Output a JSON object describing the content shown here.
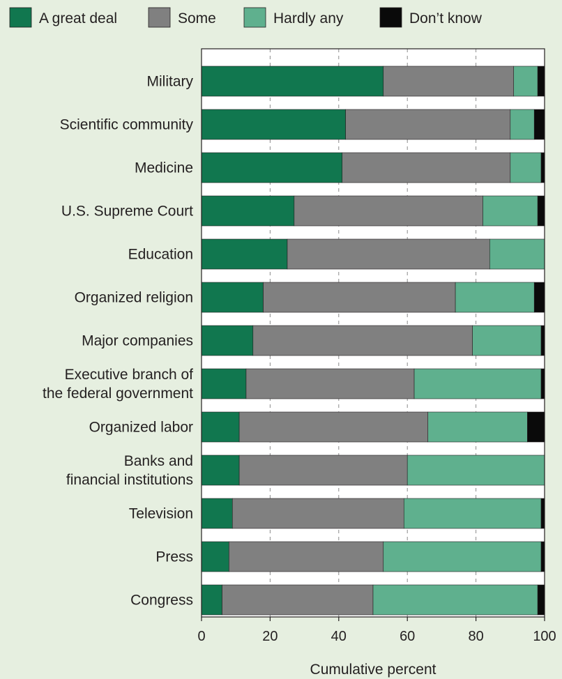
{
  "chart_data": {
    "type": "bar",
    "stacked": true,
    "orientation": "horizontal",
    "categories": [
      "Military",
      "Scientific community",
      "Medicine",
      "U.S. Supreme Court",
      "Education",
      "Organized religion",
      "Major companies",
      "Executive branch of\nthe federal government",
      "Organized labor",
      "Banks and\nfinancial institutions",
      "Television",
      "Press",
      "Congress"
    ],
    "series": [
      {
        "name": "A great deal",
        "color": "#11774f",
        "values": [
          53,
          42,
          41,
          27,
          25,
          18,
          15,
          13,
          11,
          11,
          9,
          8,
          6
        ]
      },
      {
        "name": "Some",
        "color": "#808080",
        "values": [
          38,
          48,
          49,
          55,
          59,
          56,
          64,
          49,
          55,
          49,
          50,
          45,
          44
        ]
      },
      {
        "name": "Hardly any",
        "color": "#5fb08e",
        "values": [
          7,
          7,
          9,
          16,
          16,
          23,
          20,
          37,
          29,
          40,
          40,
          46,
          48
        ]
      },
      {
        "name": "Don't know",
        "color": "#0a0a0a",
        "values": [
          2,
          3,
          1,
          3,
          0,
          3,
          1,
          1,
          5,
          0,
          1,
          1,
          3
        ]
      }
    ],
    "xlabel": "Cumulative percent",
    "xlim": [
      0,
      100
    ],
    "xticks": [
      "0",
      "20",
      "40",
      "60",
      "80",
      "100"
    ],
    "grid": "vertical dashed",
    "legend_position": "top",
    "legend_labels": [
      "A great deal",
      "Some",
      "Hardly any",
      "Don’t know"
    ],
    "colors": {
      "background": "#e6efe0",
      "plot_background": "#ffffff"
    }
  }
}
